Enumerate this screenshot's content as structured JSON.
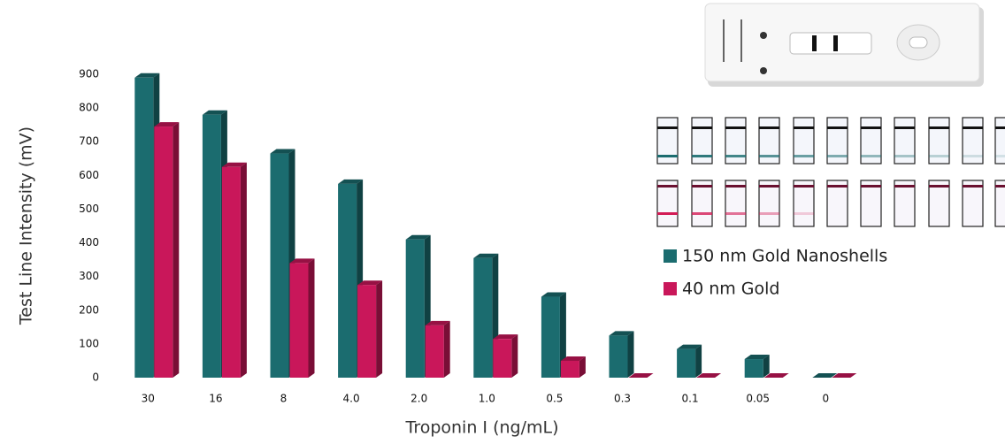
{
  "chart_data": {
    "type": "bar3d",
    "x_label": "Troponin I (ng/mL)",
    "y_label": "Test Line Intensity (mV)",
    "categories": [
      "30",
      "16",
      "8",
      "4.0",
      "2.0",
      "1.0",
      "0.5",
      "0.3",
      "0.1",
      "0.05",
      "0"
    ],
    "series": [
      {
        "name": "150 nm Gold Nanoshells",
        "color": "#1b6c6f",
        "values": [
          890,
          780,
          665,
          575,
          410,
          355,
          240,
          125,
          85,
          55,
          0
        ]
      },
      {
        "name": "40 nm Gold",
        "color": "#c9175a",
        "values": [
          745,
          625,
          340,
          275,
          155,
          115,
          50,
          0,
          0,
          0,
          0
        ]
      }
    ],
    "ylim": [
      0,
      900
    ],
    "yticks": [
      0,
      100,
      200,
      300,
      400,
      500,
      600,
      700,
      800,
      900
    ],
    "grid": false
  }
}
